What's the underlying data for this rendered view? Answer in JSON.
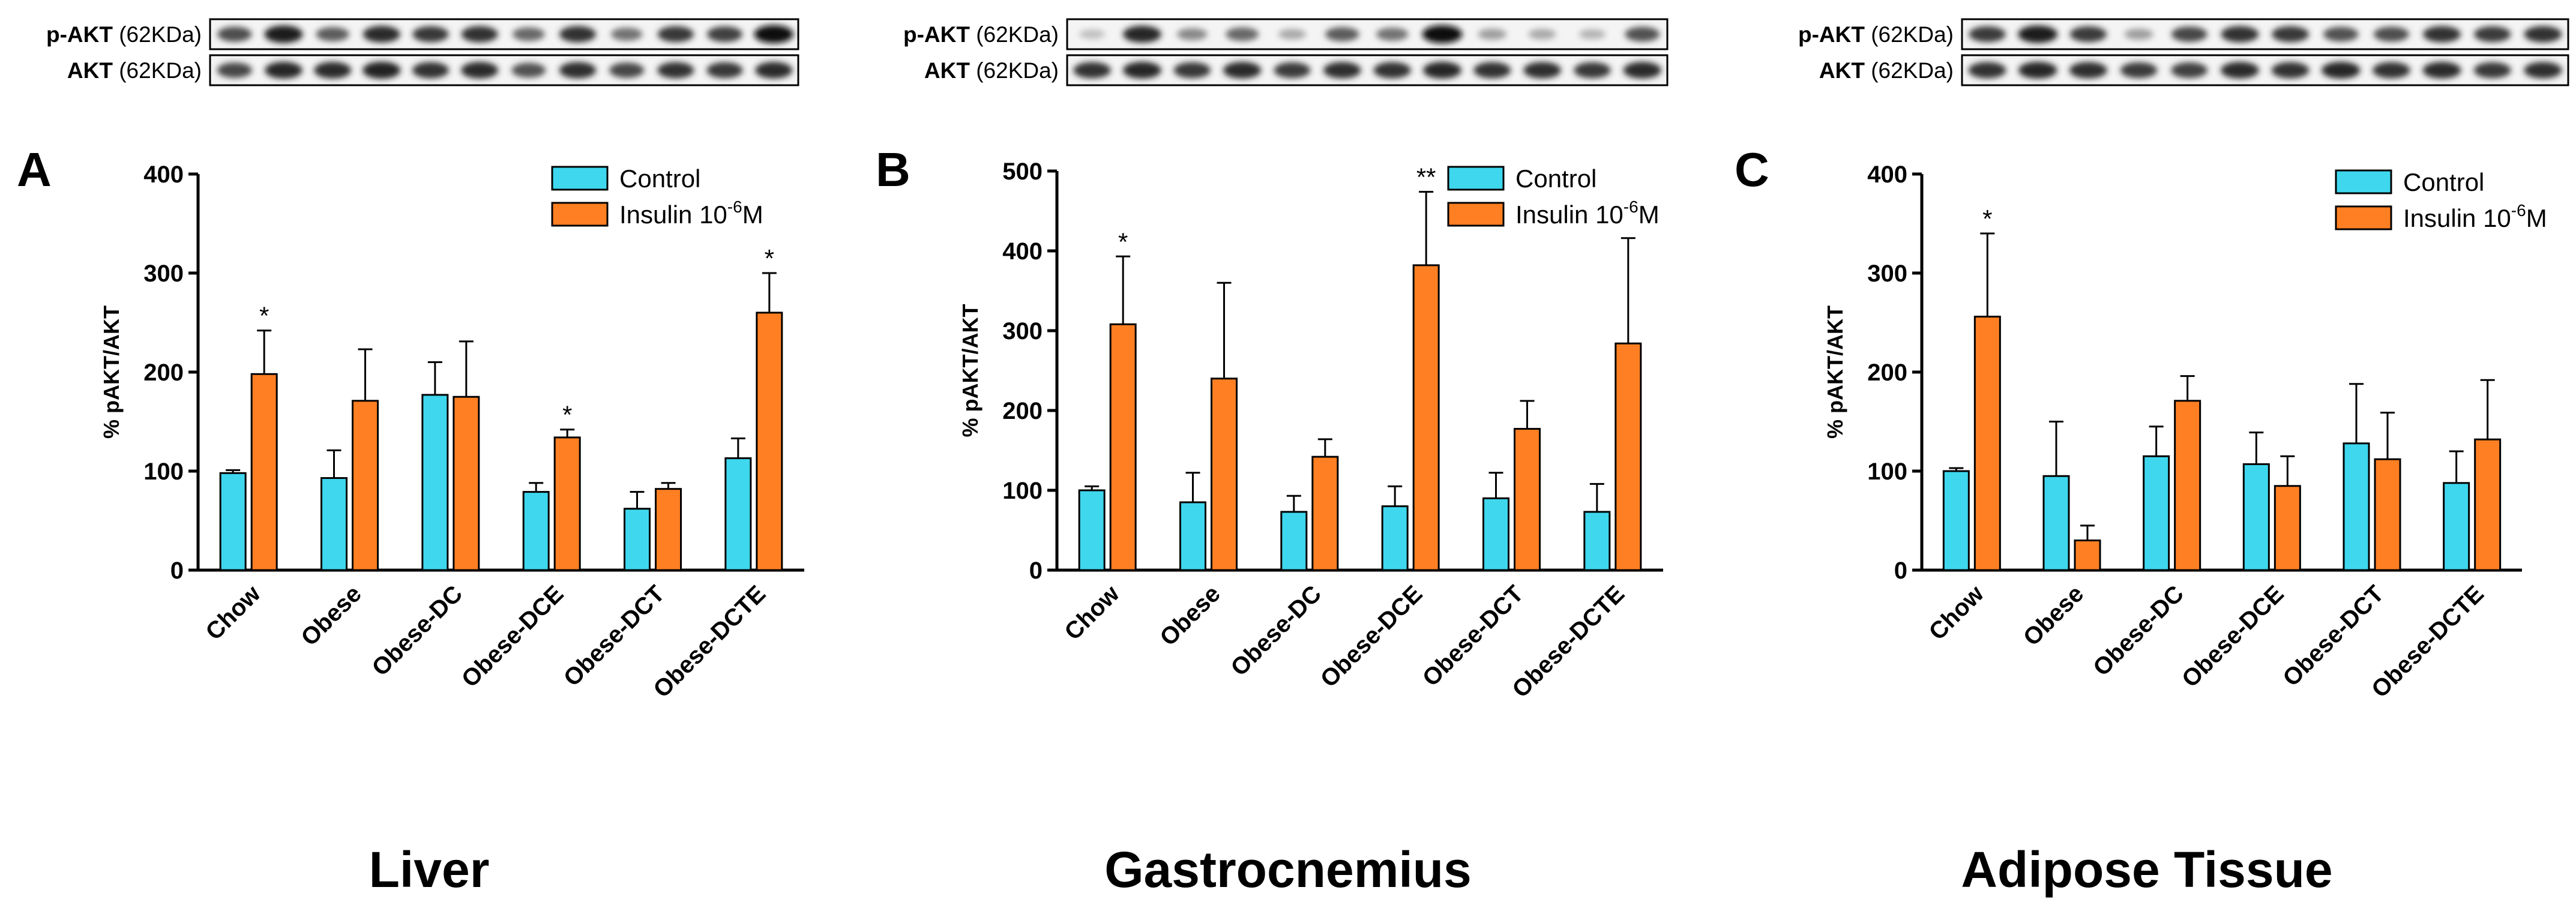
{
  "colors": {
    "control": "#3ED7EE",
    "insulin": "#FF7F22",
    "stroke": "#000000"
  },
  "panels": [
    {
      "letter": "A",
      "tissue": "Liver",
      "blot_labels": [
        {
          "protein": "p-AKT",
          "size": " (62KDa)"
        },
        {
          "protein": "AKT",
          "size": " (62KDa)"
        }
      ],
      "blot_row1": [
        0.72,
        0.95,
        0.65,
        0.88,
        0.82,
        0.85,
        0.6,
        0.85,
        0.55,
        0.82,
        0.78,
        1.0
      ],
      "blot_row2": [
        0.75,
        0.9,
        0.88,
        0.92,
        0.85,
        0.88,
        0.7,
        0.86,
        0.75,
        0.85,
        0.82,
        0.88
      ]
    },
    {
      "letter": "B",
      "tissue": "Gastrocnemius",
      "blot_labels": [
        {
          "protein": "p-AKT",
          "size": " (62KDa)"
        },
        {
          "protein": "AKT",
          "size": " (62KDa)"
        }
      ],
      "blot_row1": [
        0.2,
        0.9,
        0.45,
        0.6,
        0.3,
        0.65,
        0.55,
        1.0,
        0.35,
        0.3,
        0.25,
        0.7
      ],
      "blot_row2": [
        0.85,
        0.9,
        0.82,
        0.88,
        0.8,
        0.86,
        0.85,
        0.9,
        0.84,
        0.86,
        0.82,
        0.88
      ]
    },
    {
      "letter": "C",
      "tissue": "Adipose Tissue",
      "blot_labels": [
        {
          "protein": "p-AKT",
          "size": " (62KDa)"
        },
        {
          "protein": "AKT",
          "size": " (62KDa)"
        }
      ],
      "blot_row1": [
        0.8,
        0.95,
        0.8,
        0.35,
        0.75,
        0.85,
        0.82,
        0.7,
        0.72,
        0.85,
        0.8,
        0.85
      ],
      "blot_row2": [
        0.85,
        0.9,
        0.86,
        0.8,
        0.78,
        0.88,
        0.85,
        0.9,
        0.84,
        0.88,
        0.82,
        0.86
      ]
    }
  ],
  "chart_data": [
    {
      "type": "bar",
      "ylabel": "% pAKT/AKT",
      "ylim": [
        0,
        400
      ],
      "yticks": [
        0,
        100,
        200,
        300,
        400
      ],
      "categories": [
        "Chow",
        "Obese",
        "Obese-DC",
        "Obese-DCE",
        "Obese-DCT",
        "Obese-DCTE"
      ],
      "legend": {
        "position": "top-right",
        "labels": [
          "Control",
          "Insulin 10",
          "-6",
          "M"
        ]
      },
      "series": [
        {
          "name": "Control",
          "values": [
            98,
            93,
            177,
            79,
            62,
            113
          ],
          "errors": [
            3,
            28,
            33,
            9,
            17,
            20
          ],
          "sig": [
            "",
            "",
            "",
            "",
            "",
            ""
          ]
        },
        {
          "name": "Insulin 10-6M",
          "values": [
            198,
            171,
            175,
            134,
            82,
            260
          ],
          "errors": [
            44,
            52,
            56,
            8,
            6,
            40
          ],
          "sig": [
            "*",
            "",
            "",
            "*",
            "",
            "*"
          ]
        }
      ]
    },
    {
      "type": "bar",
      "ylabel": "% pAKT/AKT",
      "ylim": [
        0,
        500
      ],
      "yticks": [
        0,
        100,
        200,
        300,
        400,
        500
      ],
      "categories": [
        "Chow",
        "Obese",
        "Obese-DC",
        "Obese-DCE",
        "Obese-DCT",
        "Obese-DCTE"
      ],
      "legend": {
        "position": "top-right",
        "labels": [
          "Control",
          "Insulin 10",
          "-6",
          "M"
        ]
      },
      "series": [
        {
          "name": "Control",
          "values": [
            100,
            85,
            73,
            80,
            90,
            73
          ],
          "errors": [
            5,
            37,
            20,
            25,
            32,
            35
          ],
          "sig": [
            "",
            "",
            "",
            "",
            "",
            ""
          ]
        },
        {
          "name": "Insulin 10-6M",
          "values": [
            308,
            240,
            142,
            382,
            177,
            284
          ],
          "errors": [
            85,
            120,
            22,
            92,
            35,
            132
          ],
          "sig": [
            "*",
            "",
            "",
            "**",
            "",
            ""
          ]
        }
      ]
    },
    {
      "type": "bar",
      "ylabel": "% pAKT/AKT",
      "ylim": [
        0,
        400
      ],
      "yticks": [
        0,
        100,
        200,
        300,
        400
      ],
      "categories": [
        "Chow",
        "Obese",
        "Obese-DC",
        "Obese-DCE",
        "Obese-DCT",
        "Obese-DCTE"
      ],
      "legend": {
        "position": "top-right",
        "labels": [
          "Control",
          "Insulin 10",
          "-6",
          "M"
        ]
      },
      "series": [
        {
          "name": "Control",
          "values": [
            100,
            95,
            115,
            107,
            128,
            88
          ],
          "errors": [
            3,
            55,
            30,
            32,
            60,
            32
          ],
          "sig": [
            "",
            "",
            "",
            "",
            "",
            ""
          ]
        },
        {
          "name": "Insulin 10-6M",
          "values": [
            256,
            30,
            171,
            85,
            112,
            132
          ],
          "errors": [
            84,
            15,
            25,
            30,
            47,
            60
          ],
          "sig": [
            "*",
            "",
            "",
            "",
            "",
            ""
          ]
        }
      ]
    }
  ]
}
